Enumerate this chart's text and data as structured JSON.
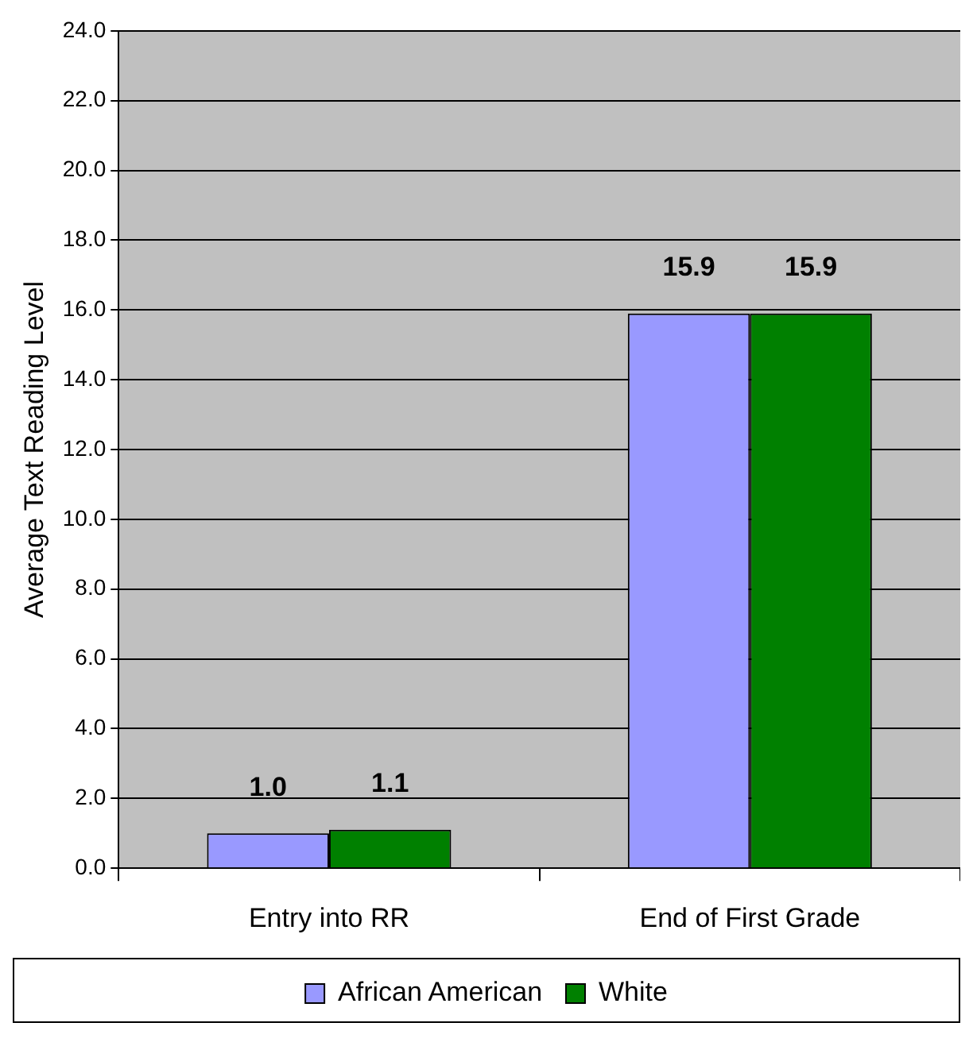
{
  "chart_data": {
    "type": "bar",
    "ylabel": "Average Text Reading Level",
    "categories": [
      "Entry into RR",
      "End of First Grade"
    ],
    "series": [
      {
        "name": "African American",
        "color": "#9999ff",
        "values": [
          1.0,
          15.9
        ],
        "value_labels": [
          "1.0",
          "15.9"
        ]
      },
      {
        "name": "White",
        "color": "#008000",
        "values": [
          1.1,
          15.9
        ],
        "value_labels": [
          "1.1",
          "15.9"
        ]
      }
    ],
    "ylim": [
      0,
      24
    ],
    "yticks": [
      {
        "value": 0,
        "label": "0.0"
      },
      {
        "value": 2,
        "label": "2.0"
      },
      {
        "value": 4,
        "label": "4.0"
      },
      {
        "value": 6,
        "label": "6.0"
      },
      {
        "value": 8,
        "label": "8.0"
      },
      {
        "value": 10,
        "label": "10.0"
      },
      {
        "value": 12,
        "label": "12.0"
      },
      {
        "value": 14,
        "label": "14.0"
      },
      {
        "value": 16,
        "label": "16.0"
      },
      {
        "value": 18,
        "label": "18.0"
      },
      {
        "value": 20,
        "label": "20.0"
      },
      {
        "value": 22,
        "label": "22.0"
      },
      {
        "value": 24,
        "label": "24.0"
      }
    ],
    "grid": "y",
    "legend": "bottom"
  }
}
